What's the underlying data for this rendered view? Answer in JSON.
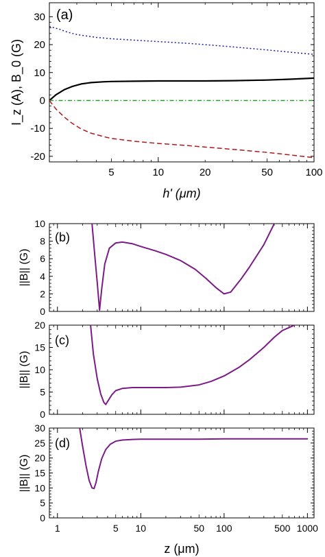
{
  "chart_data": [
    {
      "type": "line",
      "panel_label": "(a)",
      "xlabel": "h' (μm)",
      "ylabel": "I_z (A), B_0 (G)",
      "xscale": "log",
      "xlim": [
        2,
        100
      ],
      "ylim": [
        -22,
        35
      ],
      "xticks": [
        5,
        10,
        20,
        50,
        100
      ],
      "yticks": [
        -20,
        -10,
        0,
        10,
        20,
        30
      ],
      "grid": false,
      "legend": "none",
      "series": [
        {
          "color": "#1a1aa6",
          "dash": "2,3",
          "x": [
            2,
            2.3,
            2.6,
            3,
            4,
            5,
            7,
            10,
            15,
            20,
            30,
            50,
            70,
            100
          ],
          "y": [
            26.5,
            25.6,
            24.5,
            23.6,
            22.6,
            22.1,
            21.6,
            21.1,
            20.5,
            20.0,
            19.2,
            18.1,
            17.3,
            16.5
          ]
        },
        {
          "color": "#000000",
          "dash": "",
          "x": [
            2,
            2.2,
            2.5,
            2.8,
            3.2,
            3.7,
            4.5,
            5,
            7,
            10,
            20,
            30,
            50,
            70,
            100
          ],
          "y": [
            0,
            2.0,
            3.9,
            5.0,
            5.9,
            6.4,
            6.7,
            6.8,
            6.9,
            7.0,
            7.0,
            7.1,
            7.3,
            7.6,
            8.0
          ]
        },
        {
          "color": "#22a022",
          "dash": "6,3,1.5,3",
          "x": [
            2,
            100
          ],
          "y": [
            0,
            0
          ]
        },
        {
          "color": "#b01818",
          "dash": "7,4",
          "x": [
            2,
            2.2,
            2.5,
            2.8,
            3.2,
            3.7,
            4.5,
            5,
            7,
            10,
            15,
            20,
            30,
            50,
            70,
            100
          ],
          "y": [
            0,
            -3,
            -6,
            -8.2,
            -10.2,
            -11.7,
            -13.0,
            -13.6,
            -14.6,
            -15.4,
            -16.1,
            -16.7,
            -17.5,
            -18.6,
            -19.5,
            -20.5
          ]
        }
      ]
    },
    {
      "type": "line",
      "panel_label": "(b)",
      "ylabel": "||B|| (G)",
      "xscale": "log",
      "xlim": [
        0.8,
        1200
      ],
      "ylim": [
        0,
        10
      ],
      "yticks": [
        0,
        2,
        4,
        6,
        8,
        10
      ],
      "series": [
        {
          "color": "#7a1a86",
          "x": [
            2.6,
            2.8,
            3.0,
            3.2,
            3.4,
            3.7,
            4.2,
            5,
            6,
            8,
            10,
            15,
            20,
            30,
            45,
            60,
            80,
            100,
            120,
            160,
            200,
            300,
            400
          ],
          "y": [
            10.0,
            6.5,
            3.3,
            0.15,
            2.6,
            5.4,
            7.2,
            7.8,
            7.9,
            7.7,
            7.4,
            6.9,
            6.5,
            5.8,
            4.8,
            3.8,
            2.7,
            2.0,
            2.2,
            3.7,
            5.0,
            7.6,
            10.0
          ]
        }
      ]
    },
    {
      "type": "line",
      "panel_label": "(c)",
      "ylabel": "||B|| (G)",
      "xscale": "log",
      "xlim": [
        0.8,
        1200
      ],
      "ylim": [
        0,
        20
      ],
      "yticks": [
        0,
        5,
        10,
        15,
        20
      ],
      "series": [
        {
          "color": "#7a1a86",
          "x": [
            2.5,
            2.7,
            3.0,
            3.3,
            3.6,
            3.8,
            4.1,
            4.5,
            5,
            6,
            8,
            10,
            20,
            30,
            50,
            70,
            100,
            150,
            200,
            300,
            400,
            500,
            700
          ],
          "y": [
            20.0,
            13.5,
            8.0,
            4.6,
            2.7,
            2.2,
            3.2,
            4.4,
            5.3,
            5.8,
            6.0,
            6.0,
            6.0,
            6.1,
            6.6,
            7.4,
            8.6,
            10.5,
            12.2,
            15.0,
            17.3,
            18.8,
            20.0
          ]
        }
      ]
    },
    {
      "type": "line",
      "panel_label": "(d)",
      "ylabel": "||B|| (G)",
      "xlabel": "z (μm)",
      "xscale": "log",
      "xlim": [
        0.8,
        1200
      ],
      "ylim": [
        0,
        30
      ],
      "yticks": [
        0,
        5,
        10,
        15,
        20,
        25,
        30
      ],
      "xticks": [
        1,
        5,
        10,
        50,
        100,
        500,
        1000
      ],
      "series": [
        {
          "color": "#7a1a86",
          "x": [
            1.85,
            2.0,
            2.2,
            2.4,
            2.6,
            2.75,
            2.9,
            3.1,
            3.4,
            3.8,
            4.3,
            5,
            6,
            8,
            10,
            20,
            50,
            100,
            300,
            1000
          ],
          "y": [
            30.0,
            24.0,
            17.5,
            12.5,
            10.0,
            9.8,
            11.8,
            15.6,
            19.8,
            22.8,
            24.6,
            25.6,
            26.0,
            26.2,
            26.3,
            26.3,
            26.3,
            26.4,
            26.4,
            26.4
          ]
        }
      ]
    }
  ]
}
